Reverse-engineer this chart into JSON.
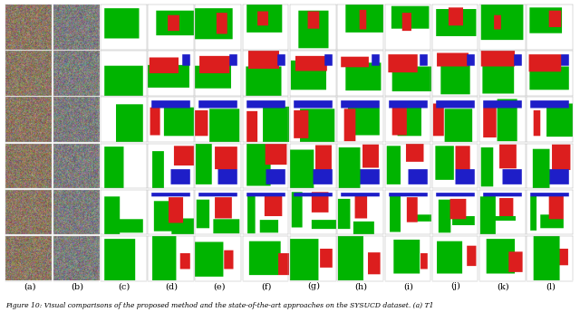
{
  "col_labels": [
    "(a)",
    "(b)",
    "(c)",
    "(d)",
    "(e)",
    "(f)",
    "(g)",
    "(h)",
    "(i)",
    "(j)",
    "(k)",
    "(l)"
  ],
  "n_rows": 6,
  "n_cols": 12,
  "caption": "Figure 10: Visual comparisons of the proposed method and the state-of-the-art approaches on the SYSUCD dataset. (a) T1",
  "bg_color": "#ffffff",
  "label_fontsize": 7,
  "caption_fontsize": 5.5,
  "figure_width": 6.4,
  "figure_height": 3.45,
  "dpi": 100
}
